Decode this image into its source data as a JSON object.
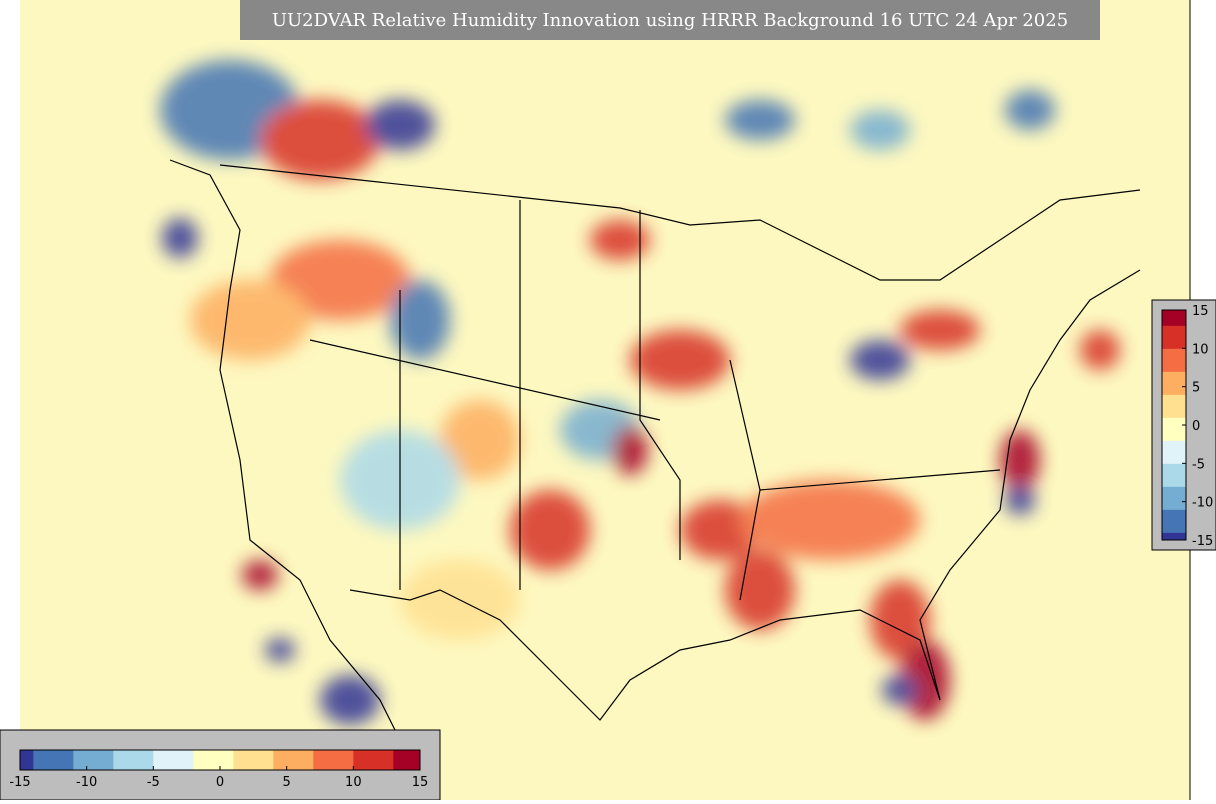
{
  "title": "UU2DVAR Relative Humidity Innovation using HRRR Background 16 UTC 24 Apr 2025",
  "colormap": [
    "#313695",
    "#4575b4",
    "#74add1",
    "#abd9e9",
    "#e0f3f8",
    "#ffffbf",
    "#fee090",
    "#fdae61",
    "#f46d43",
    "#d73027",
    "#a50026"
  ],
  "colorbars": [
    {
      "orientation": "vertical",
      "lim": [
        -15,
        15
      ],
      "ticks": [
        15,
        10,
        5,
        0,
        -5,
        -10,
        -15
      ]
    },
    {
      "orientation": "horizontal",
      "lim": [
        -15,
        15
      ],
      "ticks": [
        -15,
        -10,
        -5,
        0,
        5,
        10,
        15
      ]
    }
  ]
}
